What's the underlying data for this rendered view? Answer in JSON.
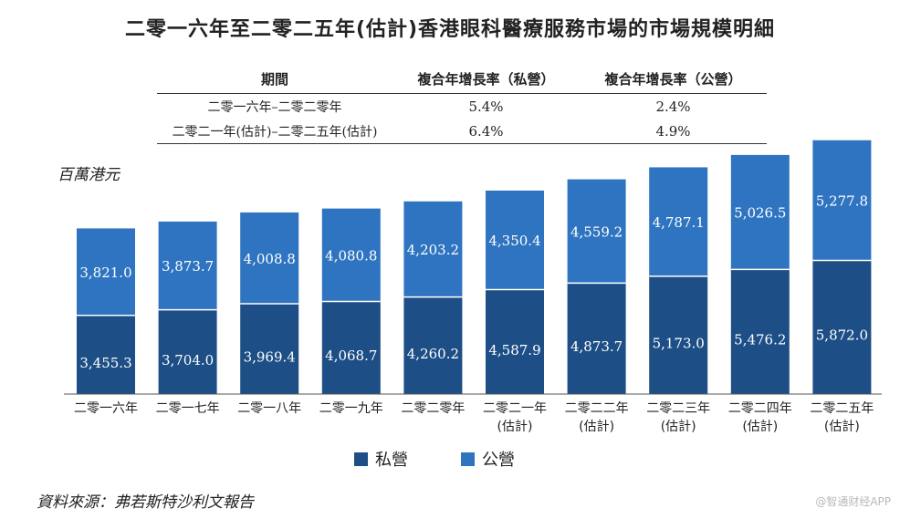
{
  "chart_data": {
    "type": "bar",
    "stacked": true,
    "title": "二零一六年至二零二五年(估計)香港眼科醫療服務市場的市場規模明細",
    "ylabel": "百萬港元",
    "categories": [
      [
        "二零一六年"
      ],
      [
        "二零一七年"
      ],
      [
        "二零一八年"
      ],
      [
        "二零一九年"
      ],
      [
        "二零二零年"
      ],
      [
        "二零二一年",
        "(估計)"
      ],
      [
        "二零二二年",
        "(估計)"
      ],
      [
        "二零二三年",
        "(估計)"
      ],
      [
        "二零二四年",
        "(估計)"
      ],
      [
        "二零二五年",
        "(估計)"
      ]
    ],
    "series": [
      {
        "name": "私營",
        "color": "#1d4f86",
        "values": [
          3455.3,
          3704.0,
          3969.4,
          4068.7,
          4260.2,
          4587.9,
          4873.7,
          5173.0,
          5476.2,
          5872.0
        ],
        "labels": [
          "3,455.3",
          "3,704.0",
          "3,969.4",
          "4,068.7",
          "4,260.2",
          "4,587.9",
          "4,873.7",
          "5,173.0",
          "5,476.2",
          "5,872.0"
        ]
      },
      {
        "name": "公營",
        "color": "#2f74c0",
        "values": [
          3821.0,
          3873.7,
          4008.8,
          4080.8,
          4203.2,
          4350.4,
          4559.2,
          4787.1,
          5026.5,
          5277.8
        ],
        "labels": [
          "3,821.0",
          "3,873.7",
          "4,008.8",
          "4,080.8",
          "4,203.2",
          "4,350.4",
          "4,559.2",
          "4,787.1",
          "5,026.5",
          "5,277.8"
        ]
      }
    ],
    "ylim": [
      0,
      11300
    ],
    "legend_position": "bottom"
  },
  "cagr_table": {
    "headers": [
      "期間",
      "複合年增長率（私營）",
      "複合年增長率（公營）"
    ],
    "rows": [
      [
        "二零一六年–二零二零年",
        "5.4%",
        "2.4%"
      ],
      [
        "二零二一年(估計)–二零二五年(估計)",
        "6.4%",
        "4.9%"
      ]
    ]
  },
  "source": "資料來源：弗若斯特沙利文報告",
  "watermark": "@智通财经APP"
}
